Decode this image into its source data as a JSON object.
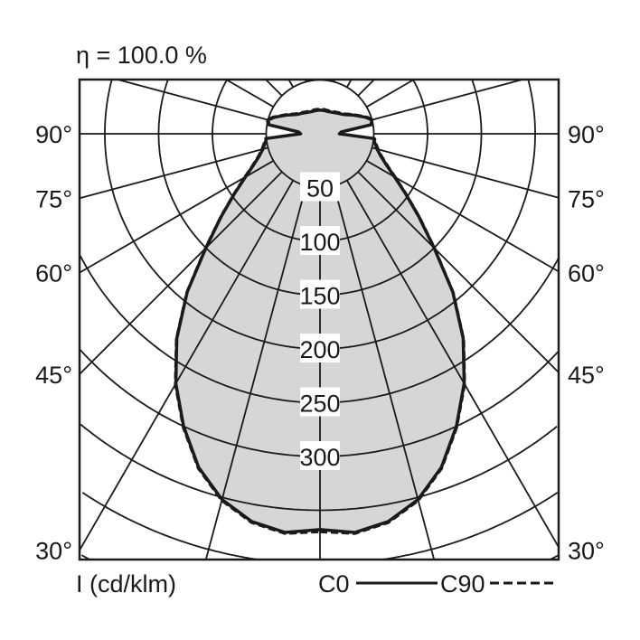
{
  "chart_data": {
    "type": "polar-line",
    "title": "η = 100.0 %",
    "unit_label": "I (cd/klm)",
    "radial_ticks": [
      50,
      100,
      150,
      200,
      250,
      300
    ],
    "angle_ticks_left": [
      "90°",
      "75°",
      "60°",
      "45°",
      "30°"
    ],
    "angle_ticks_right": [
      "90°",
      "75°",
      "60°",
      "45°",
      "30°"
    ],
    "angle_tick_values": [
      90,
      75,
      60,
      45,
      30
    ],
    "grid_angle_step_deg": 15,
    "grid": true,
    "fill_color": "#d6d6d6",
    "line_color": "#1a1a1a",
    "angles_deg": [
      0,
      5,
      10,
      15,
      20,
      25,
      30,
      35,
      40,
      45,
      50,
      55,
      60,
      65,
      70,
      75,
      80,
      85,
      90,
      95,
      100,
      105,
      110,
      120,
      130,
      140,
      150,
      160,
      170,
      180
    ],
    "series": [
      {
        "name": "C0",
        "style": "solid",
        "values": [
          368,
          372,
          366,
          352,
          330,
          300,
          268,
          232,
          192,
          150,
          120,
          97,
          80,
          68,
          60,
          55,
          52,
          50,
          18,
          20,
          48,
          50,
          45,
          35,
          28,
          25,
          23,
          22,
          22,
          22
        ]
      },
      {
        "name": "C90",
        "style": "dashed",
        "values": [
          370,
          373,
          367,
          353,
          331,
          301,
          269,
          233,
          193,
          151,
          121,
          98,
          81,
          69,
          61,
          56,
          53,
          51,
          19,
          21,
          49,
          51,
          46,
          36,
          29,
          26,
          24,
          23,
          23,
          23
        ]
      }
    ],
    "legend": [
      {
        "label": "C0",
        "style": "solid"
      },
      {
        "label": "C90",
        "style": "dashed"
      }
    ],
    "legend_placement": "bottom-right"
  }
}
